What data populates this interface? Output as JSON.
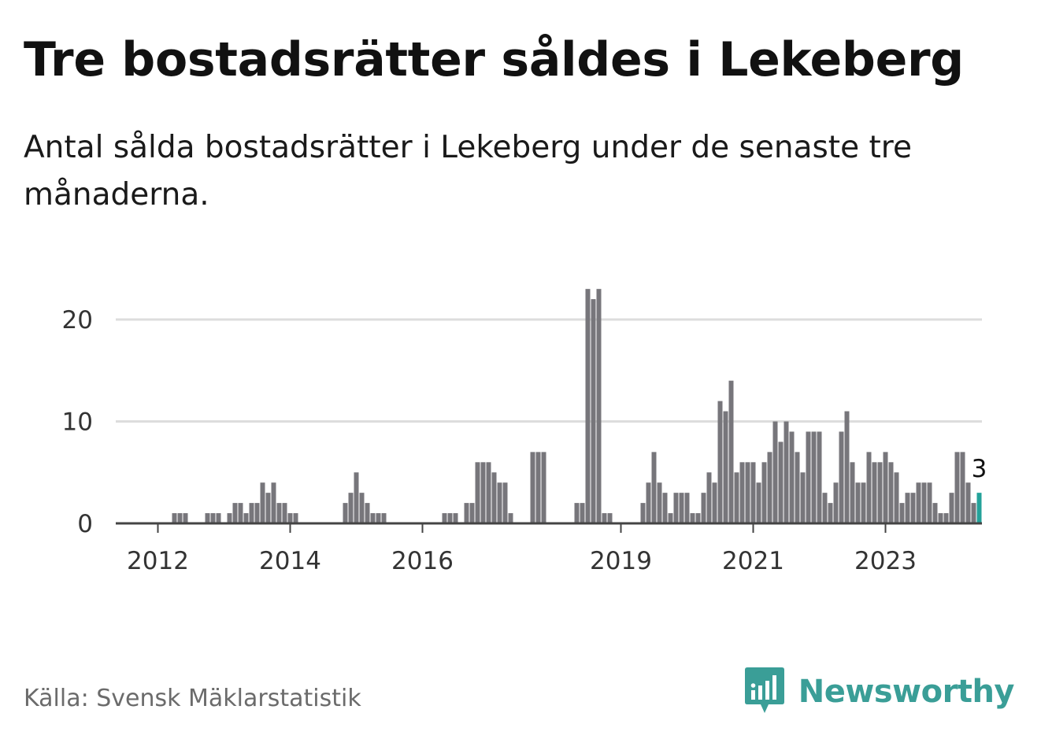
{
  "title": "Tre bostadsrätter såldes i Lekeberg",
  "subtitle": "Antal sålda bostadsrätter i Lekeberg under de senaste tre månaderna.",
  "source": "Källa: Svensk Mäklarstatistik",
  "brand": {
    "name": "Newsworthy",
    "icon": "newsworthy-chart-icon"
  },
  "colors": {
    "bar": "#77767b",
    "highlight": "#24a29a",
    "grid": "#dddddd",
    "axis": "#444444",
    "brand": "#3a9e97"
  },
  "chart_data": {
    "type": "bar",
    "title": "Tre bostadsrätter såldes i Lekeberg",
    "subtitle": "Antal sålda bostadsrätter i Lekeberg under de senaste tre månaderna.",
    "xlabel": "",
    "ylabel": "",
    "ylim": [
      0,
      24
    ],
    "yticks": [
      0,
      10,
      20
    ],
    "xticks": [
      "2012",
      "2014",
      "2016",
      "2019",
      "2021",
      "2023"
    ],
    "grid": true,
    "bar_interval": "monthly, rolling three-month count",
    "x_start": "2011-08",
    "values": [
      0,
      0,
      0,
      0,
      0,
      0,
      0,
      0,
      1,
      1,
      1,
      0,
      0,
      0,
      1,
      1,
      1,
      0,
      1,
      2,
      2,
      1,
      2,
      2,
      4,
      3,
      4,
      2,
      2,
      1,
      1,
      0,
      0,
      0,
      0,
      0,
      0,
      0,
      0,
      2,
      3,
      5,
      3,
      2,
      1,
      1,
      1,
      0,
      0,
      0,
      0,
      0,
      0,
      0,
      0,
      0,
      0,
      1,
      1,
      1,
      0,
      2,
      2,
      6,
      6,
      6,
      5,
      4,
      4,
      1,
      0,
      0,
      0,
      7,
      7,
      7,
      0,
      0,
      0,
      0,
      0,
      2,
      2,
      23,
      22,
      23,
      1,
      1,
      0,
      0,
      0,
      0,
      0,
      2,
      4,
      7,
      4,
      3,
      1,
      3,
      3,
      3,
      1,
      1,
      3,
      5,
      4,
      12,
      11,
      14,
      5,
      6,
      6,
      6,
      4,
      6,
      7,
      10,
      8,
      10,
      9,
      7,
      5,
      9,
      9,
      9,
      3,
      2,
      4,
      9,
      11,
      6,
      4,
      4,
      7,
      6,
      6,
      7,
      6,
      5,
      2,
      3,
      3,
      4,
      4,
      4,
      2,
      1,
      1,
      3,
      7,
      7,
      4,
      2,
      3
    ],
    "highlight_last": true,
    "annotations": [
      {
        "label": "3",
        "target": "last-bar"
      }
    ]
  }
}
